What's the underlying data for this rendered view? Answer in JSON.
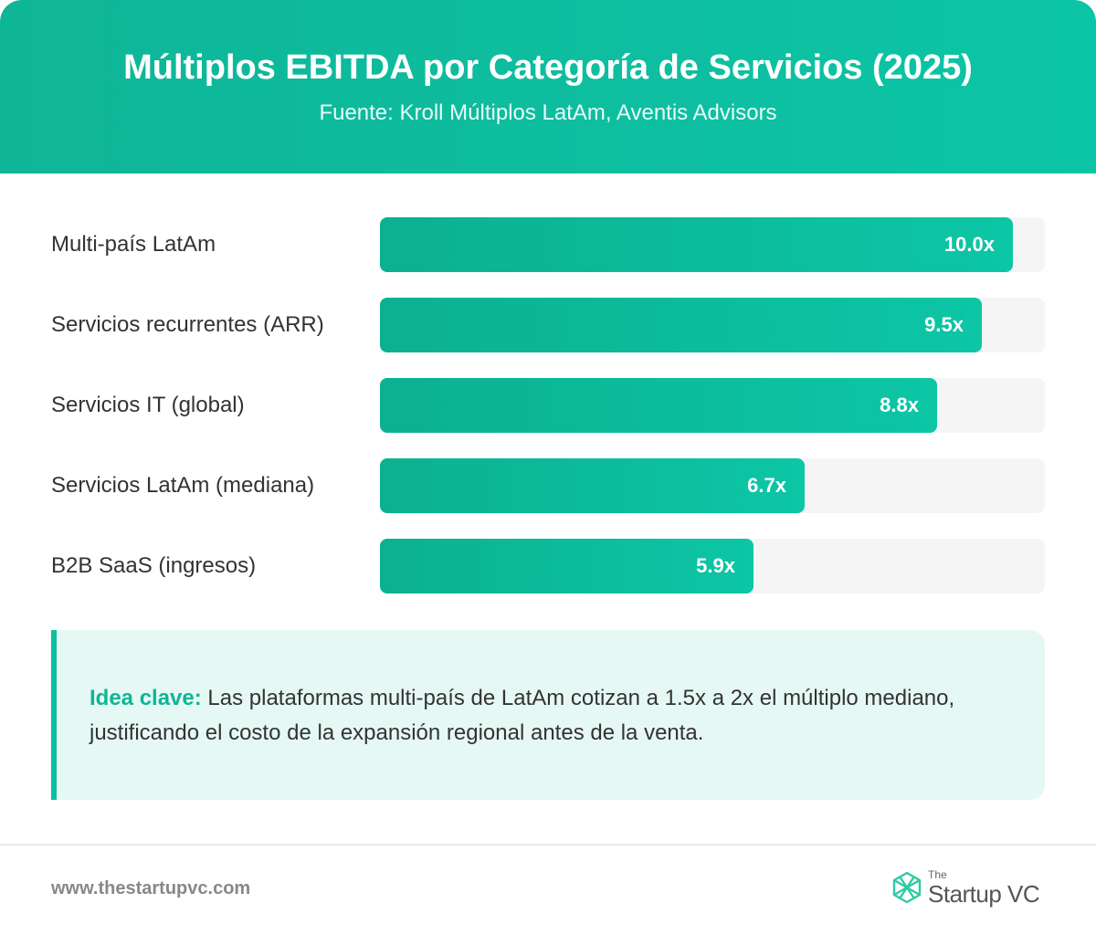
{
  "header": {
    "title": "Múltiplos EBITDA por Categoría de Servicios (2025)",
    "source": "Fuente: Kroll Múltiplos LatAm, Aventis Advisors"
  },
  "chart_data": {
    "type": "bar",
    "orientation": "horizontal",
    "title": "Múltiplos EBITDA por Categoría de Servicios (2025)",
    "subtitle": "Fuente: Kroll Múltiplos LatAm, Aventis Advisors",
    "categories": [
      "Multi-país LatAm",
      "Servicios recurrentes (ARR)",
      "Servicios IT (global)",
      "Servicios LatAm (mediana)",
      "B2B SaaS (ingresos)"
    ],
    "values": [
      10.0,
      9.5,
      8.8,
      6.7,
      5.9
    ],
    "value_labels": [
      "10.0x",
      "9.5x",
      "8.8x",
      "6.7x",
      "5.9x"
    ],
    "xlim": [
      0,
      10.5
    ],
    "grid": false,
    "legend": "none",
    "colors": {
      "bar": "#0cbf9f",
      "track": "#f5f5f5",
      "header": "#0cc5a6"
    }
  },
  "insight": {
    "label": "Idea clave:",
    "text": " Las plataformas multi-país de LatAm cotizan a 1.5x a 2x el múltiplo mediano, justificando el costo de la expansión regional antes de la venta."
  },
  "footer": {
    "url": "www.thestartupvc.com",
    "logo_the": "The",
    "logo_name": "Startup VC",
    "logo_icon": "hexagon-logo-icon"
  }
}
